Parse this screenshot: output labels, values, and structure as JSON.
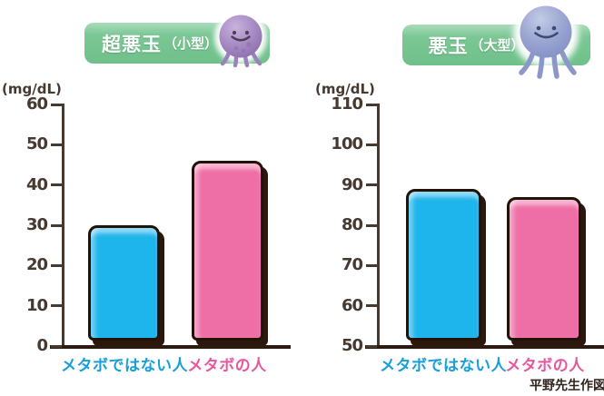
{
  "credit": "平野先生作図",
  "colors": {
    "badge_green": "#7bc795",
    "bar_outline": "#231208",
    "bar_shadow": "#2b170c",
    "axis": "#46392f",
    "small_character": "#a287c1",
    "large_character": "#94a0ce"
  },
  "chart_data": [
    {
      "type": "bar",
      "title": "超悪玉（小型）",
      "badge_title": "超悪玉",
      "badge_subtitle": "（小型）",
      "ylabel": "(mg/dL)",
      "ylim": [
        0,
        60
      ],
      "yticks": [
        60,
        50,
        40,
        30,
        20,
        10,
        0
      ],
      "categories": [
        "メタボではない人",
        "メタボの人"
      ],
      "values": [
        30,
        46
      ],
      "series_colors": [
        "#1eb5ec",
        "#ee6fa6"
      ],
      "category_colors": [
        "#169fd9",
        "#e7579c"
      ],
      "grid": false,
      "legend": "none"
    },
    {
      "type": "bar",
      "title": "悪玉（大型）",
      "badge_title": "悪玉",
      "badge_subtitle": "（大型）",
      "ylabel": "(mg/dL)",
      "ylim": [
        50,
        110
      ],
      "yticks": [
        110,
        100,
        90,
        80,
        70,
        60,
        50
      ],
      "categories": [
        "メタボではない人",
        "メタボの人"
      ],
      "values": [
        89,
        87
      ],
      "series_colors": [
        "#1eb5ec",
        "#ee6fa6"
      ],
      "category_colors": [
        "#169fd9",
        "#e7579c"
      ],
      "grid": false,
      "legend": "none"
    }
  ]
}
